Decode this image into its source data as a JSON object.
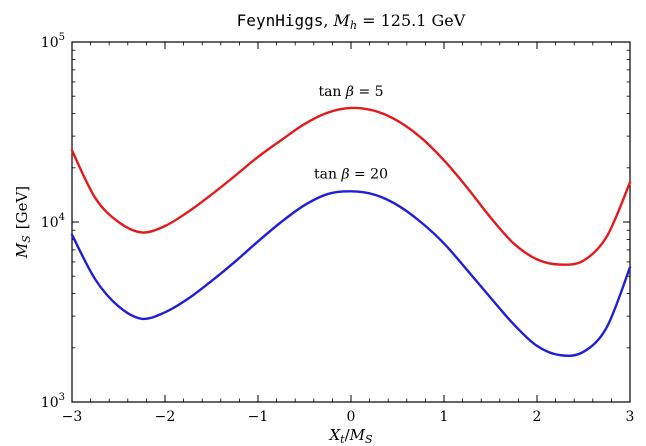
{
  "chart_data": {
    "type": "line",
    "title": {
      "code": "FeynHiggs",
      "sep": ", ",
      "var": "M",
      "var_sub": "h",
      "rest": " = 125.1 GeV"
    },
    "xlabel": {
      "var": "X",
      "sub": "t",
      "slash": "/",
      "var2": "M",
      "sub2": "S"
    },
    "ylabel": {
      "var": "M",
      "sub": "S",
      "unit": "[GeV]"
    },
    "x_scale": "linear",
    "y_scale": "log",
    "xlim": [
      -3,
      3
    ],
    "ylim": [
      1000,
      100000
    ],
    "x_ticks": [
      {
        "value": -3,
        "label": "−3"
      },
      {
        "value": -2,
        "label": "−2"
      },
      {
        "value": -1,
        "label": "−1"
      },
      {
        "value": 0,
        "label": "0"
      },
      {
        "value": 1,
        "label": "1"
      },
      {
        "value": 2,
        "label": "2"
      },
      {
        "value": 3,
        "label": "3"
      }
    ],
    "y_ticks": [
      {
        "value": 1000,
        "base": "10",
        "exp": "3"
      },
      {
        "value": 10000,
        "base": "10",
        "exp": "4"
      },
      {
        "value": 100000,
        "base": "10",
        "exp": "5"
      }
    ],
    "grid": false,
    "legend": "none",
    "series": [
      {
        "color": "#e31a1c",
        "x": [
          -3.0,
          -2.75,
          -2.5,
          -2.25,
          -2.0,
          -1.75,
          -1.5,
          -1.25,
          -1.0,
          -0.75,
          -0.5,
          -0.25,
          0.0,
          0.25,
          0.5,
          0.75,
          1.0,
          1.25,
          1.5,
          1.75,
          2.0,
          2.25,
          2.5,
          2.75,
          3.0
        ],
        "y": [
          25000,
          13600,
          10000,
          8750,
          9500,
          11400,
          14200,
          18000,
          23000,
          28500,
          35000,
          40500,
          43000,
          41500,
          36500,
          29500,
          22000,
          15500,
          10600,
          7600,
          6200,
          5800,
          6100,
          8300,
          16600
        ]
      },
      {
        "color": "#1f1fd8",
        "x": [
          -3.0,
          -2.75,
          -2.5,
          -2.25,
          -2.0,
          -1.75,
          -1.5,
          -1.25,
          -1.0,
          -0.75,
          -0.5,
          -0.25,
          0.0,
          0.25,
          0.5,
          0.75,
          1.0,
          1.25,
          1.5,
          1.75,
          2.0,
          2.25,
          2.5,
          2.75,
          3.0
        ],
        "y": [
          8500,
          4800,
          3400,
          2900,
          3150,
          3750,
          4700,
          6000,
          7800,
          10000,
          12400,
          14300,
          14800,
          14200,
          12400,
          10000,
          7600,
          5400,
          3800,
          2700,
          2050,
          1820,
          1900,
          2600,
          5600
        ]
      }
    ],
    "annotations": [
      {
        "series": 0,
        "x": 0.0,
        "y": 50000,
        "prefix": "tan ",
        "greek": "β",
        "suffix": " = 5"
      },
      {
        "series": 1,
        "x": 0.0,
        "y": 17500,
        "prefix": "tan ",
        "greek": "β",
        "suffix": " = 20"
      }
    ]
  }
}
